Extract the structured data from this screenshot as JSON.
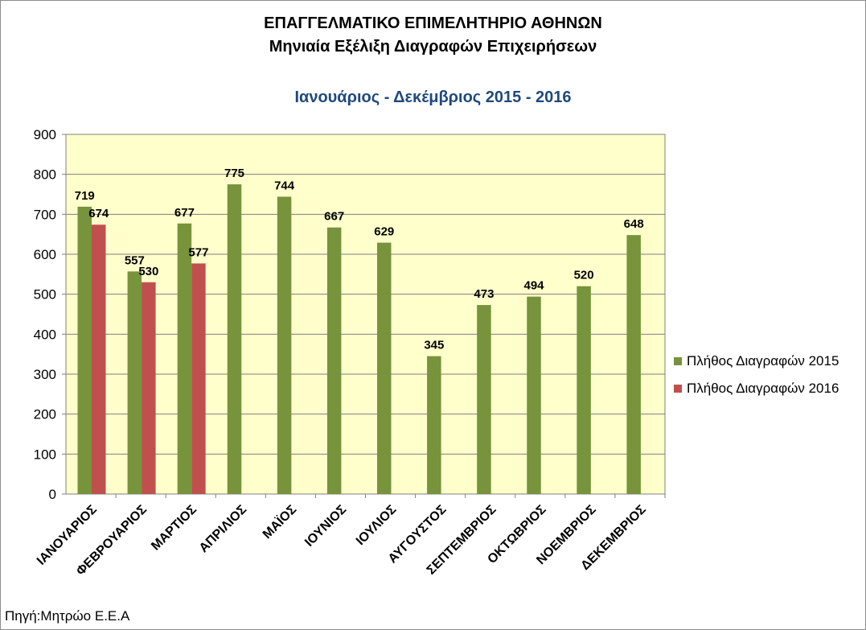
{
  "title_line1": "ΕΠΑΓΓΕΛΜΑΤΙΚΟ ΕΠΙΜΕΛΗΤΗΡΙΟ ΑΘΗΝΩΝ",
  "title_line2": "Μηνιαία Εξέλιξη Διαγραφών Επιχειρήσεων",
  "subtitle": "Ιανουάριος - Δεκέμβριος  2015 - 2016",
  "source": "Πηγή:Μητρώο Ε.Ε.Α",
  "colors": {
    "plot_bg": "#ffffcc",
    "series_2015": "#77933c",
    "series_2016": "#c0504d",
    "subtitle": "#1f497d"
  },
  "chart_data": {
    "type": "bar",
    "title": "ΕΠΑΓΓΕΛΜΑΤΙΚΟ ΕΠΙΜΕΛΗΤΗΡΙΟ ΑΘΗΝΩΝ Μηνιαία Εξέλιξη Διαγραφών Επιχειρήσεων",
    "subtitle": "Ιανουάριος - Δεκέμβριος  2015 - 2016",
    "categories": [
      "ΙΑΝΟΥΑΡΙΟΣ",
      "ΦΕΒΡΟΥΑΡΙΟΣ",
      "ΜΑΡΤΙΟΣ",
      "ΑΠΡΙΛΙΟΣ",
      "ΜΑΪΟΣ",
      "ΙΟΥΝΙΟΣ",
      "ΙΟΥΛΙΟΣ",
      "ΑΥΓΟΥΣΤΟΣ",
      "ΣΕΠΤΕΜΒΡΙΟΣ",
      "ΟΚΤΩΒΡΙΟΣ",
      "ΝΟΕΜΒΡΙΟΣ",
      "ΔΕΚΕΜΒΡΙΟΣ"
    ],
    "series": [
      {
        "name": "Πλήθος Διαγραφών 2015",
        "color": "#77933c",
        "values": [
          719,
          557,
          677,
          775,
          744,
          667,
          629,
          345,
          473,
          494,
          520,
          648
        ]
      },
      {
        "name": "Πλήθος Διαγραφών 2016",
        "color": "#c0504d",
        "values": [
          674,
          530,
          577,
          null,
          null,
          null,
          null,
          null,
          null,
          null,
          null,
          null
        ]
      }
    ],
    "ylim": [
      0,
      900
    ],
    "yticks": [
      0,
      100,
      200,
      300,
      400,
      500,
      600,
      700,
      800,
      900
    ],
    "grid": true,
    "legend": "right",
    "data_labels": true
  }
}
